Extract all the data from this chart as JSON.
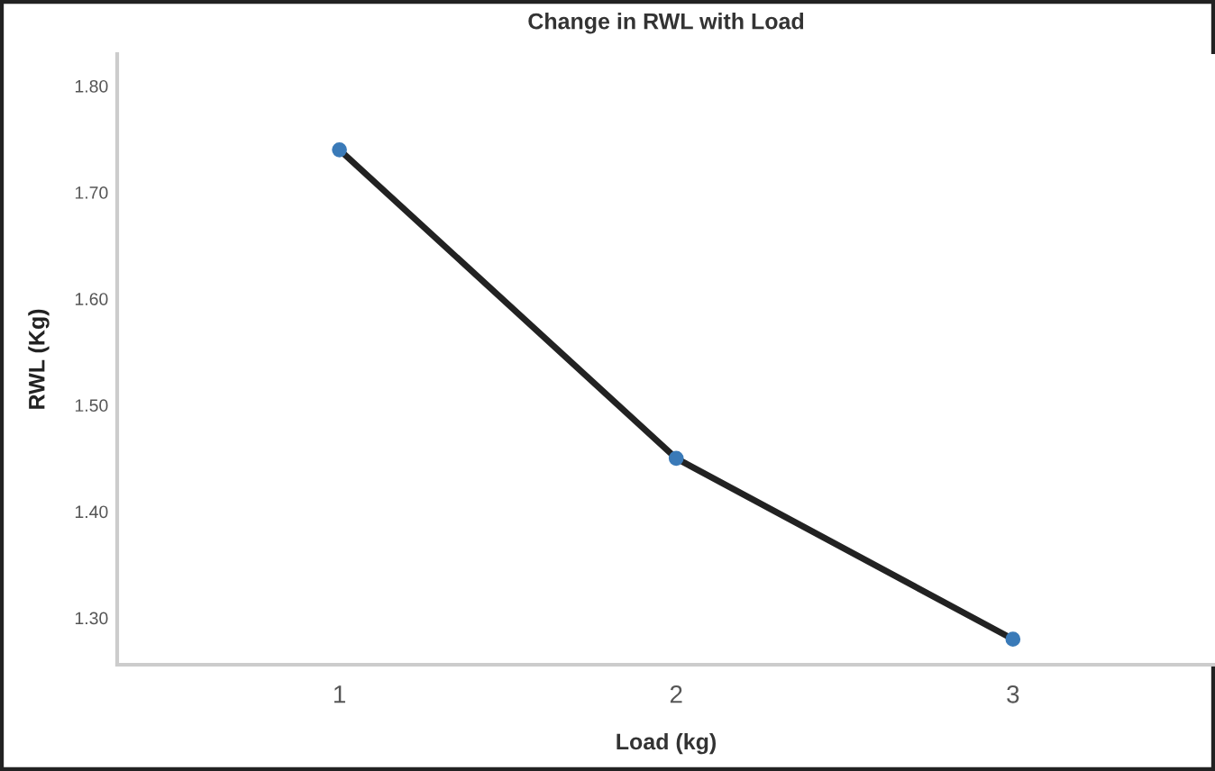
{
  "chart_data": {
    "type": "line",
    "title": "Change in RWL with Load",
    "xlabel": "Load (kg)",
    "ylabel": "RWL (Kg)",
    "x": [
      1,
      2,
      3
    ],
    "series": [
      {
        "color": "#222222",
        "values": [
          1.74,
          1.45,
          1.28
        ]
      }
    ],
    "xlim": [
      0.34,
      3.6
    ],
    "xticks": [
      1,
      2,
      3
    ],
    "ylim": [
      1.256,
      1.83
    ],
    "yticks": [
      {
        "value": 1.3,
        "label": "1.30"
      },
      {
        "value": 1.4,
        "label": "1.40"
      },
      {
        "value": 1.5,
        "label": "1.50"
      },
      {
        "value": 1.6,
        "label": "1.60"
      },
      {
        "value": 1.7,
        "label": "1.70"
      },
      {
        "value": 1.8,
        "label": "1.80"
      }
    ],
    "marker": "circle",
    "line_style": "solid",
    "grid": false,
    "legend": false
  }
}
